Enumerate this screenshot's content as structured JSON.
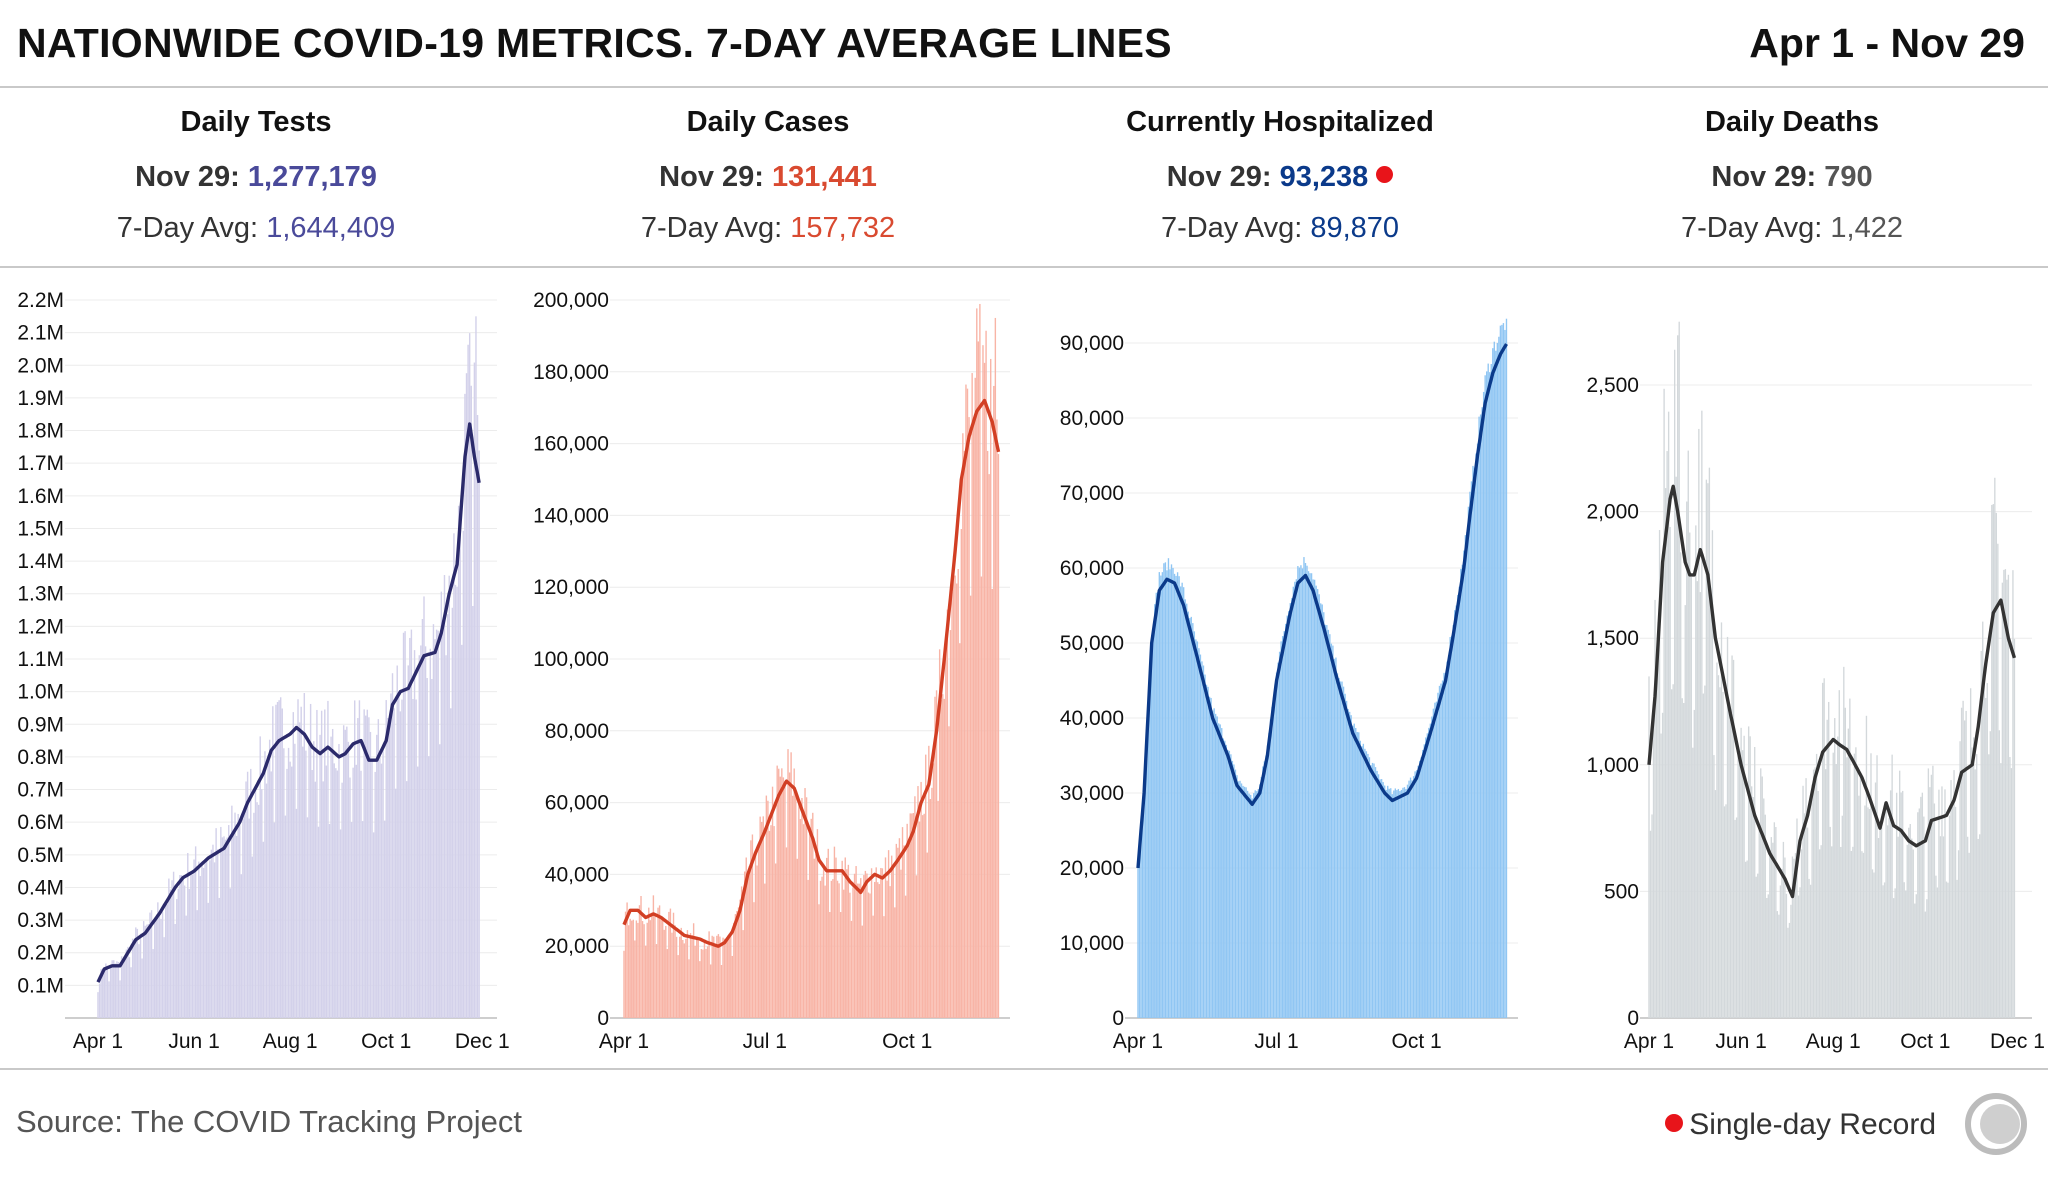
{
  "header": {
    "title": "NATIONWIDE COVID-19 METRICS. 7-DAY AVERAGE LINES",
    "date_range": "Apr 1 - Nov 29"
  },
  "panels": [
    {
      "name": "Daily Tests",
      "latest_label": "Nov 29:",
      "latest_value": "1,277,179",
      "avg_label": "7-Day Avg:",
      "avg_value": "1,644,409",
      "record": false
    },
    {
      "name": "Daily Cases",
      "latest_label": "Nov 29:",
      "latest_value": "131,441",
      "avg_label": "7-Day Avg:",
      "avg_value": "157,732",
      "record": false
    },
    {
      "name": "Currently Hospitalized",
      "latest_label": "Nov 29:",
      "latest_value": "93,238",
      "avg_label": "7-Day Avg:",
      "avg_value": "89,870",
      "record": true
    },
    {
      "name": "Daily Deaths",
      "latest_label": "Nov 29:",
      "latest_value": "790",
      "avg_label": "7-Day Avg:",
      "avg_value": "1,422",
      "record": false
    }
  ],
  "footer": {
    "source": "Source: The COVID Tracking Project",
    "legend_label": "Single-day Record"
  },
  "colors": {
    "record_dot": "#e8141a",
    "tests_bar": "#d3d1ea",
    "tests_line": "#2b2a6b",
    "tests_value": "#4a4a9a",
    "cases_bar": "#f8b4a6",
    "cases_line": "#d23f24",
    "cases_value": "#d94a30",
    "hosp_bar": "#90c6f3",
    "hosp_line": "#0b3a8a",
    "hosp_value": "#0b3a8a",
    "deaths_bar": "#d3d8db",
    "deaths_line": "#333333",
    "deaths_value": "#555555"
  },
  "chart_data": [
    {
      "type": "bar",
      "name": "Daily Tests",
      "xlabel": "",
      "ylabel": "",
      "x_ticks": [
        "Apr 1",
        "Jun 1",
        "Aug 1",
        "Oct 1",
        "Dec 1"
      ],
      "y_ticks": [
        "0.1M",
        "0.2M",
        "0.3M",
        "0.4M",
        "0.5M",
        "0.6M",
        "0.7M",
        "0.8M",
        "0.9M",
        "1.0M",
        "1.1M",
        "1.2M",
        "1.3M",
        "1.4M",
        "1.5M",
        "1.6M",
        "1.7M",
        "1.8M",
        "1.9M",
        "2.0M",
        "2.1M",
        "2.2M"
      ],
      "ylim": [
        0,
        2200000
      ],
      "date_range": [
        "Apr 1",
        "Nov 29"
      ],
      "line_points": [
        [
          "Apr 1",
          110000
        ],
        [
          "Apr 5",
          150000
        ],
        [
          "Apr 10",
          160000
        ],
        [
          "Apr 15",
          160000
        ],
        [
          "Apr 20",
          200000
        ],
        [
          "Apr 25",
          240000
        ],
        [
          "May 1",
          260000
        ],
        [
          "May 10",
          320000
        ],
        [
          "May 20",
          400000
        ],
        [
          "May 25",
          430000
        ],
        [
          "Jun 1",
          450000
        ],
        [
          "Jun 10",
          490000
        ],
        [
          "Jun 20",
          520000
        ],
        [
          "Jun 30",
          600000
        ],
        [
          "Jul 5",
          660000
        ],
        [
          "Jul 15",
          750000
        ],
        [
          "Jul 20",
          820000
        ],
        [
          "Jul 25",
          850000
        ],
        [
          "Aug 1",
          870000
        ],
        [
          "Aug 5",
          890000
        ],
        [
          "Aug 10",
          870000
        ],
        [
          "Aug 15",
          830000
        ],
        [
          "Aug 20",
          810000
        ],
        [
          "Aug 25",
          830000
        ],
        [
          "Sep 1",
          800000
        ],
        [
          "Sep 5",
          810000
        ],
        [
          "Sep 10",
          840000
        ],
        [
          "Sep 15",
          850000
        ],
        [
          "Sep 20",
          790000
        ],
        [
          "Sep 25",
          790000
        ],
        [
          "Oct 1",
          850000
        ],
        [
          "Oct 5",
          960000
        ],
        [
          "Oct 10",
          1000000
        ],
        [
          "Oct 15",
          1010000
        ],
        [
          "Oct 20",
          1060000
        ],
        [
          "Oct 25",
          1110000
        ],
        [
          "Nov 1",
          1120000
        ],
        [
          "Nov 5",
          1180000
        ],
        [
          "Nov 10",
          1300000
        ],
        [
          "Nov 15",
          1390000
        ],
        [
          "Nov 20",
          1720000
        ],
        [
          "Nov 23",
          1820000
        ],
        [
          "Nov 26",
          1720000
        ],
        [
          "Nov 29",
          1640000
        ]
      ],
      "peak_daily": [
        "Nov 27",
        2150000
      ]
    },
    {
      "type": "bar",
      "name": "Daily Cases",
      "xlabel": "",
      "ylabel": "",
      "x_ticks": [
        "Apr 1",
        "Jul 1",
        "Oct 1"
      ],
      "y_ticks": [
        "0",
        "20,000",
        "40,000",
        "60,000",
        "80,000",
        "100,000",
        "120,000",
        "140,000",
        "160,000",
        "180,000",
        "200,000"
      ],
      "ylim": [
        0,
        200000
      ],
      "date_range": [
        "Apr 1",
        "Nov 29"
      ],
      "line_points": [
        [
          "Apr 1",
          26000
        ],
        [
          "Apr 5",
          30000
        ],
        [
          "Apr 10",
          30000
        ],
        [
          "Apr 15",
          28000
        ],
        [
          "Apr 20",
          29000
        ],
        [
          "Apr 25",
          28000
        ],
        [
          "May 1",
          26000
        ],
        [
          "May 10",
          23000
        ],
        [
          "May 20",
          22000
        ],
        [
          "May 25",
          21000
        ],
        [
          "Jun 1",
          20000
        ],
        [
          "Jun 5",
          21000
        ],
        [
          "Jun 10",
          24000
        ],
        [
          "Jun 15",
          30000
        ],
        [
          "Jun 20",
          40000
        ],
        [
          "Jun 25",
          46000
        ],
        [
          "Jul 1",
          52000
        ],
        [
          "Jul 10",
          62000
        ],
        [
          "Jul 15",
          66000
        ],
        [
          "Jul 20",
          64000
        ],
        [
          "Jul 25",
          58000
        ],
        [
          "Aug 1",
          50000
        ],
        [
          "Aug 5",
          44000
        ],
        [
          "Aug 10",
          41000
        ],
        [
          "Aug 15",
          41000
        ],
        [
          "Aug 20",
          41000
        ],
        [
          "Aug 25",
          38000
        ],
        [
          "Sep 1",
          35000
        ],
        [
          "Sep 5",
          38000
        ],
        [
          "Sep 10",
          40000
        ],
        [
          "Sep 15",
          39000
        ],
        [
          "Sep 20",
          41000
        ],
        [
          "Sep 25",
          44000
        ],
        [
          "Oct 1",
          48000
        ],
        [
          "Oct 5",
          52000
        ],
        [
          "Oct 10",
          60000
        ],
        [
          "Oct 15",
          65000
        ],
        [
          "Oct 20",
          80000
        ],
        [
          "Oct 25",
          100000
        ],
        [
          "Nov 1",
          130000
        ],
        [
          "Nov 5",
          150000
        ],
        [
          "Nov 10",
          162000
        ],
        [
          "Nov 15",
          169000
        ],
        [
          "Nov 20",
          172000
        ],
        [
          "Nov 25",
          166000
        ],
        [
          "Nov 29",
          157700
        ]
      ],
      "peak_daily": [
        "Nov 27",
        195000
      ]
    },
    {
      "type": "bar",
      "name": "Currently Hospitalized",
      "xlabel": "",
      "ylabel": "",
      "x_ticks": [
        "Apr 1",
        "Jul 1",
        "Oct 1"
      ],
      "y_ticks": [
        "0",
        "10,000",
        "20,000",
        "30,000",
        "40,000",
        "50,000",
        "60,000",
        "70,000",
        "80,000",
        "90,000"
      ],
      "ylim": [
        0,
        95000
      ],
      "date_range": [
        "Apr 1",
        "Nov 29"
      ],
      "line_points": [
        [
          "Apr 1",
          20000
        ],
        [
          "Apr 5",
          30000
        ],
        [
          "Apr 10",
          50000
        ],
        [
          "Apr 15",
          57000
        ],
        [
          "Apr 20",
          58500
        ],
        [
          "Apr 25",
          58000
        ],
        [
          "May 1",
          55000
        ],
        [
          "May 10",
          48000
        ],
        [
          "May 20",
          40000
        ],
        [
          "May 30",
          35000
        ],
        [
          "Jun 5",
          31000
        ],
        [
          "Jun 15",
          28500
        ],
        [
          "Jun 20",
          30000
        ],
        [
          "Jun 25",
          35000
        ],
        [
          "Jul 1",
          45000
        ],
        [
          "Jul 10",
          54000
        ],
        [
          "Jul 15",
          58000
        ],
        [
          "Jul 20",
          59000
        ],
        [
          "Jul 25",
          57000
        ],
        [
          "Aug 1",
          52000
        ],
        [
          "Aug 10",
          45000
        ],
        [
          "Aug 20",
          38000
        ],
        [
          "Sep 1",
          33000
        ],
        [
          "Sep 10",
          30000
        ],
        [
          "Sep 15",
          29000
        ],
        [
          "Sep 25",
          30000
        ],
        [
          "Oct 1",
          32000
        ],
        [
          "Oct 10",
          38000
        ],
        [
          "Oct 20",
          45000
        ],
        [
          "Oct 25",
          51000
        ],
        [
          "Nov 1",
          60000
        ],
        [
          "Nov 5",
          67000
        ],
        [
          "Nov 10",
          75000
        ],
        [
          "Nov 15",
          82000
        ],
        [
          "Nov 20",
          86000
        ],
        [
          "Nov 25",
          88500
        ],
        [
          "Nov 29",
          89870
        ]
      ],
      "peak_daily": [
        "Nov 29",
        93238
      ]
    },
    {
      "type": "bar",
      "name": "Daily Deaths",
      "xlabel": "",
      "ylabel": "",
      "x_ticks": [
        "Apr 1",
        "Jun 1",
        "Aug 1",
        "Oct 1",
        "Dec 1"
      ],
      "y_ticks": [
        "0",
        "500",
        "1,000",
        "1,500",
        "2,000",
        "2,500"
      ],
      "ylim": [
        0,
        2800
      ],
      "date_range": [
        "Apr 1",
        "Nov 29"
      ],
      "line_points": [
        [
          "Apr 1",
          1000
        ],
        [
          "Apr 5",
          1270
        ],
        [
          "Apr 10",
          1800
        ],
        [
          "Apr 15",
          2050
        ],
        [
          "Apr 17",
          2100
        ],
        [
          "Apr 20",
          2000
        ],
        [
          "Apr 25",
          1800
        ],
        [
          "Apr 28",
          1750
        ],
        [
          "May 1",
          1750
        ],
        [
          "May 5",
          1850
        ],
        [
          "May 10",
          1750
        ],
        [
          "May 15",
          1500
        ],
        [
          "May 20",
          1350
        ],
        [
          "May 25",
          1200
        ],
        [
          "Jun 1",
          1000
        ],
        [
          "Jun 10",
          800
        ],
        [
          "Jun 20",
          650
        ],
        [
          "Jun 30",
          550
        ],
        [
          "Jul 5",
          480
        ],
        [
          "Jul 10",
          700
        ],
        [
          "Jul 15",
          800
        ],
        [
          "Jul 20",
          950
        ],
        [
          "Jul 25",
          1050
        ],
        [
          "Aug 1",
          1100
        ],
        [
          "Aug 5",
          1080
        ],
        [
          "Aug 10",
          1060
        ],
        [
          "Aug 20",
          950
        ],
        [
          "Aug 25",
          870
        ],
        [
          "Sep 1",
          750
        ],
        [
          "Sep 5",
          850
        ],
        [
          "Sep 10",
          760
        ],
        [
          "Sep 15",
          740
        ],
        [
          "Sep 20",
          700
        ],
        [
          "Sep 25",
          680
        ],
        [
          "Oct 1",
          700
        ],
        [
          "Oct 5",
          780
        ],
        [
          "Oct 15",
          800
        ],
        [
          "Oct 20",
          860
        ],
        [
          "Oct 25",
          970
        ],
        [
          "Nov 1",
          1000
        ],
        [
          "Nov 5",
          1150
        ],
        [
          "Nov 10",
          1400
        ],
        [
          "Nov 15",
          1600
        ],
        [
          "Nov 20",
          1650
        ],
        [
          "Nov 25",
          1500
        ],
        [
          "Nov 29",
          1422
        ]
      ],
      "peak_daily": [
        "Apr 21",
        2750
      ]
    }
  ]
}
